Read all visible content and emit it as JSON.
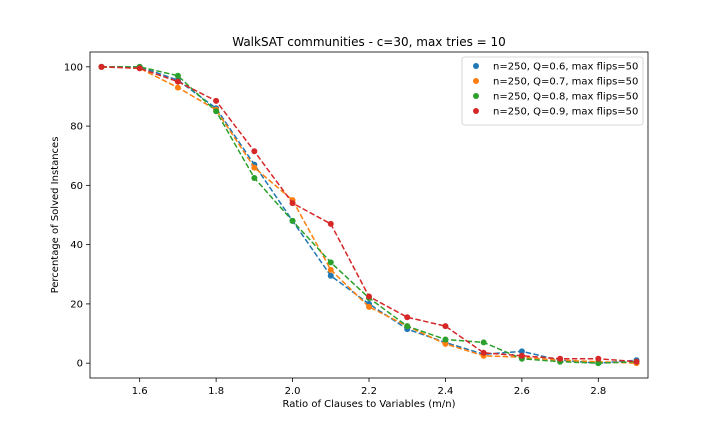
{
  "chart_data": {
    "type": "line",
    "title": "WalkSAT communities - c=30, max tries = 10",
    "xlabel": "Ratio of Clauses to Variables (m/n)",
    "ylabel": "Percentage of Solved Instances",
    "xlim": [
      1.47,
      2.93
    ],
    "ylim": [
      -5,
      105
    ],
    "xticks": [
      1.6,
      1.8,
      2.0,
      2.2,
      2.4,
      2.6,
      2.8
    ],
    "xtick_labels": [
      "1.6",
      "1.8",
      "2.0",
      "2.2",
      "2.4",
      "2.6",
      "2.8"
    ],
    "yticks": [
      0,
      20,
      40,
      60,
      80,
      100
    ],
    "ytick_labels": [
      "0",
      "20",
      "40",
      "60",
      "80",
      "100"
    ],
    "grid": false,
    "legend_position": "top-right",
    "line_style": "dashed",
    "marker": "circle",
    "x": [
      1.5,
      1.6,
      1.7,
      1.8,
      1.9,
      2.0,
      2.1,
      2.2,
      2.3,
      2.4,
      2.5,
      2.6,
      2.7,
      2.8,
      2.9
    ],
    "series": [
      {
        "name": "n=250, Q=0.6, max flips=50",
        "color": "#1f77b4",
        "values": [
          100,
          100,
          95.5,
          86,
          67,
          48,
          29.5,
          20,
          11.5,
          7,
          3,
          4,
          1,
          0,
          1
        ]
      },
      {
        "name": "n=250, Q=0.7, max flips=50",
        "color": "#ff7f0e",
        "values": [
          100,
          99.5,
          93,
          85.5,
          66,
          55,
          31.5,
          19,
          12.5,
          6.5,
          2.5,
          2,
          1,
          0.5,
          0
        ]
      },
      {
        "name": "n=250, Q=0.8, max flips=50",
        "color": "#2ca02c",
        "values": [
          100,
          100,
          97,
          85,
          62.5,
          48,
          34,
          22,
          12.5,
          8,
          7,
          1.5,
          0.5,
          0,
          0.5
        ]
      },
      {
        "name": "n=250, Q=0.9, max flips=50",
        "color": "#d62728",
        "values": [
          100,
          99.5,
          95,
          88.5,
          71.5,
          54,
          47,
          22.5,
          15.5,
          12.5,
          3.5,
          2.5,
          1.5,
          1.5,
          0.5
        ]
      }
    ]
  }
}
